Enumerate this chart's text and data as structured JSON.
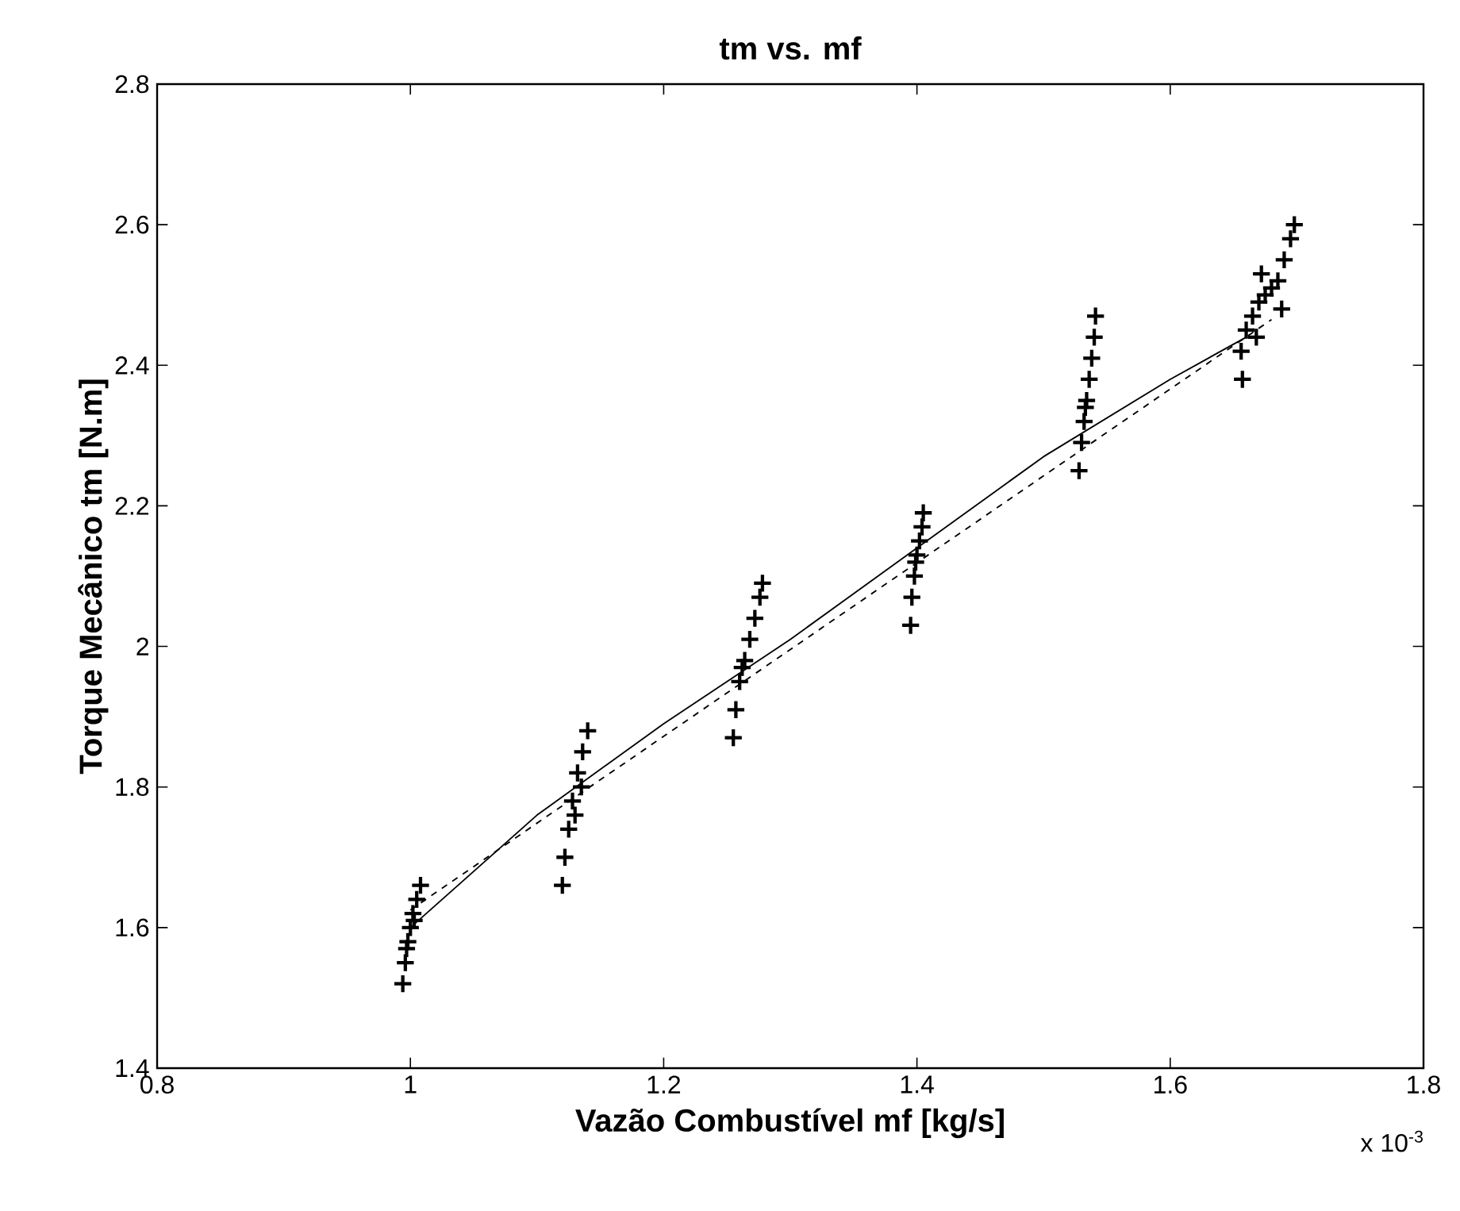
{
  "chart_data": {
    "type": "scatter",
    "title": "tm vs. mf",
    "xlabel": "Vazão Combustível mf [kg/s]",
    "ylabel": "Torque Mecânico tm [N.m]",
    "xlim": [
      0.8,
      1.8
    ],
    "xticks": [
      0.8,
      1,
      1.2,
      1.4,
      1.6,
      1.8
    ],
    "ylim": [
      1.4,
      2.8
    ],
    "yticks": [
      1.4,
      1.6,
      1.8,
      2,
      2.2,
      2.4,
      2.6,
      2.8
    ],
    "annotations": [
      "x 10$^{-3}$"
    ],
    "series": [
      {
        "marker": "cross",
        "color": "#000000",
        "x": [
          0.994,
          0.996,
          0.997,
          0.998,
          1.0,
          1.002,
          1.003,
          1.005,
          1.008,
          1.12,
          1.122,
          1.125,
          1.128,
          1.13,
          1.132,
          1.135,
          1.136,
          1.14,
          1.255,
          1.257,
          1.26,
          1.262,
          1.264,
          1.268,
          1.272,
          1.276,
          1.278,
          1.395,
          1.396,
          1.398,
          1.399,
          1.4,
          1.402,
          1.404,
          1.405,
          1.528,
          1.53,
          1.532,
          1.533,
          1.534,
          1.536,
          1.538,
          1.54,
          1.541,
          1.657,
          1.656,
          1.66,
          1.665,
          1.668,
          1.67,
          1.672,
          1.675,
          1.68,
          1.685,
          1.688,
          1.69,
          1.695,
          1.698
        ],
        "values": [
          1.52,
          1.55,
          1.57,
          1.58,
          1.6,
          1.62,
          1.61,
          1.64,
          1.66,
          1.66,
          1.7,
          1.74,
          1.78,
          1.76,
          1.82,
          1.8,
          1.85,
          1.88,
          1.87,
          1.91,
          1.95,
          1.97,
          1.98,
          2.01,
          2.04,
          2.07,
          2.09,
          2.03,
          2.07,
          2.1,
          2.12,
          2.13,
          2.15,
          2.17,
          2.19,
          2.25,
          2.29,
          2.32,
          2.34,
          2.35,
          2.38,
          2.41,
          2.44,
          2.47,
          2.38,
          2.42,
          2.45,
          2.47,
          2.44,
          2.49,
          2.53,
          2.5,
          2.51,
          2.52,
          2.48,
          2.55,
          2.58,
          2.6
        ]
      },
      {
        "type": "line",
        "line_style": "solid",
        "color": "#000000",
        "x": [
          1.0,
          1.1,
          1.2,
          1.3,
          1.4,
          1.5,
          1.6,
          1.66
        ],
        "values": [
          1.6,
          1.76,
          1.89,
          2.01,
          2.14,
          2.27,
          2.38,
          2.44
        ]
      },
      {
        "type": "line",
        "line_style": "dashed",
        "color": "#000000",
        "x": [
          1.0,
          1.68
        ],
        "values": [
          1.625,
          2.465
        ]
      }
    ]
  }
}
